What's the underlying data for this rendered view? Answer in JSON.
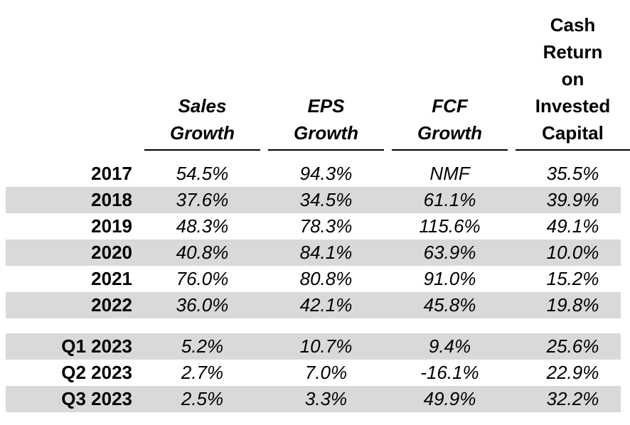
{
  "colors": {
    "background": "#ffffff",
    "text": "#000000",
    "shaded_row": "#d9d9d9",
    "underline": "#000000"
  },
  "table": {
    "columns": [
      {
        "id": "sales-growth",
        "label": "Sales Growth",
        "label_lines": [
          "Sales",
          "Growth"
        ]
      },
      {
        "id": "eps-growth",
        "label": "EPS Growth",
        "label_lines": [
          "EPS",
          "Growth"
        ]
      },
      {
        "id": "fcf-growth",
        "label": "FCF Growth",
        "label_lines": [
          "FCF",
          "Growth"
        ]
      },
      {
        "id": "croic",
        "label": "Cash Return on Invested Capital",
        "label_lines": [
          "Cash",
          "Return",
          "on",
          "Invested",
          "Capital"
        ]
      }
    ],
    "rows": [
      {
        "label": "2017",
        "values": [
          "54.5%",
          "94.3%",
          "NMF",
          "35.5%"
        ]
      },
      {
        "label": "2018",
        "values": [
          "37.6%",
          "34.5%",
          "61.1%",
          "39.9%"
        ]
      },
      {
        "label": "2019",
        "values": [
          "48.3%",
          "78.3%",
          "115.6%",
          "49.1%"
        ]
      },
      {
        "label": "2020",
        "values": [
          "40.8%",
          "84.1%",
          "63.9%",
          "10.0%"
        ]
      },
      {
        "label": "2021",
        "values": [
          "76.0%",
          "80.8%",
          "91.0%",
          "15.2%"
        ]
      },
      {
        "label": "2022",
        "values": [
          "36.0%",
          "42.1%",
          "45.8%",
          "19.8%"
        ]
      },
      {
        "label": "Q1 2023",
        "values": [
          "5.2%",
          "10.7%",
          "9.4%",
          "25.6%"
        ]
      },
      {
        "label": "Q2 2023",
        "values": [
          "2.7%",
          "7.0%",
          "-16.1%",
          "22.9%"
        ]
      },
      {
        "label": "Q3 2023",
        "values": [
          "2.5%",
          "3.3%",
          "49.9%",
          "32.2%"
        ]
      }
    ]
  },
  "chart_data": {
    "type": "table",
    "title": "",
    "row_labels": [
      "2017",
      "2018",
      "2019",
      "2020",
      "2021",
      "2022",
      "Q1 2023",
      "Q2 2023",
      "Q3 2023"
    ],
    "row_groups": {
      "annual": [
        "2017",
        "2018",
        "2019",
        "2020",
        "2021",
        "2022"
      ],
      "quarterly": [
        "Q1 2023",
        "Q2 2023",
        "Q3 2023"
      ]
    },
    "unit": "percent",
    "series": [
      {
        "name": "Sales Growth",
        "values": [
          54.5,
          37.6,
          48.3,
          40.8,
          76.0,
          36.0,
          5.2,
          2.7,
          2.5
        ]
      },
      {
        "name": "EPS Growth",
        "values": [
          94.3,
          34.5,
          78.3,
          84.1,
          80.8,
          42.1,
          10.7,
          7.0,
          3.3
        ]
      },
      {
        "name": "FCF Growth",
        "values": [
          "NMF",
          61.1,
          115.6,
          63.9,
          91.0,
          45.8,
          9.4,
          -16.1,
          49.9
        ]
      },
      {
        "name": "Cash Return on Invested Capital",
        "values": [
          35.5,
          39.9,
          49.1,
          10.0,
          15.2,
          19.8,
          25.6,
          22.9,
          32.2
        ]
      }
    ],
    "layout_hints": {
      "shaded_rows": [
        "2018",
        "2020",
        "2022",
        "Q1 2023",
        "Q3 2023"
      ],
      "gap_before": "Q1 2023"
    }
  }
}
